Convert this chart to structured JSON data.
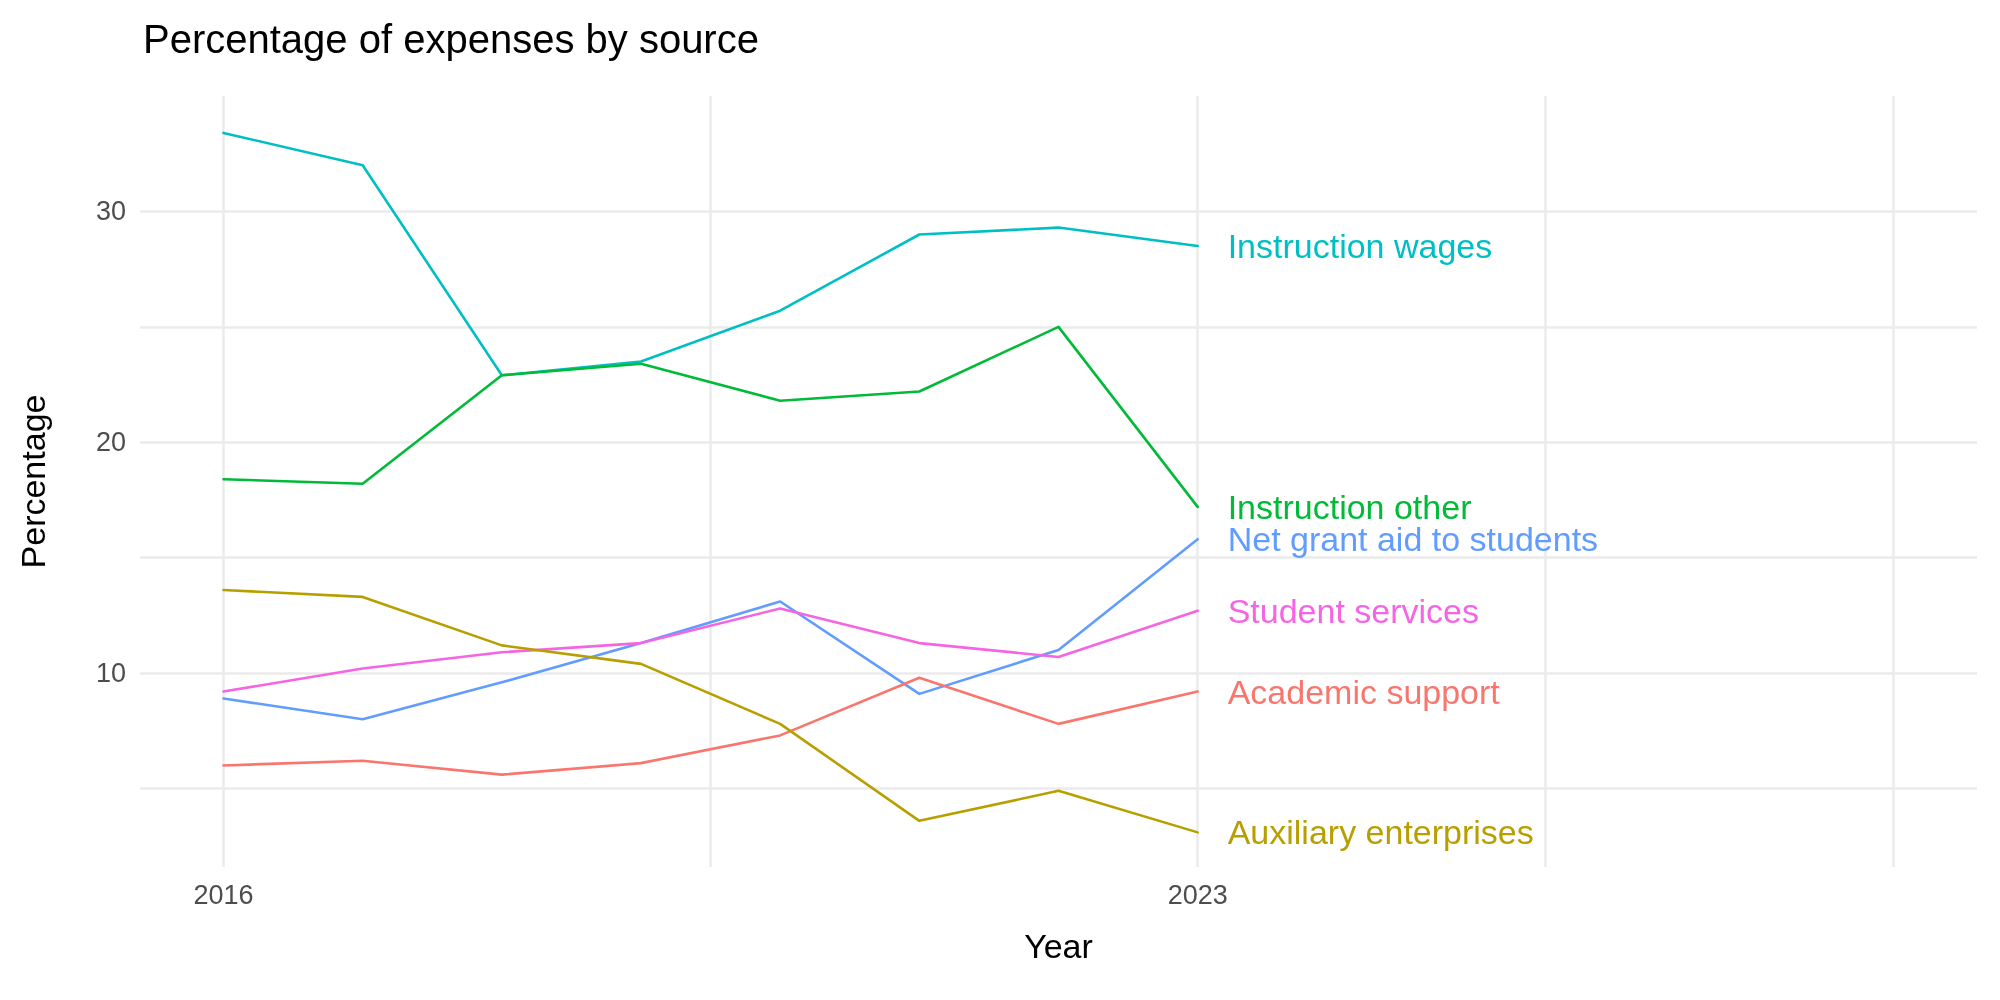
{
  "chart_data": {
    "type": "line",
    "title": "Percentage of expenses by source",
    "xlabel": "Year",
    "ylabel": "Percentage",
    "x": [
      2016,
      2017,
      2018,
      2019,
      2020,
      2021,
      2022,
      2023
    ],
    "series": [
      {
        "name": "Instruction wages",
        "color": "#00bfc4",
        "values": [
          33.4,
          32.0,
          22.9,
          23.5,
          25.7,
          29.0,
          29.3,
          28.5
        ]
      },
      {
        "name": "Instruction other",
        "color": "#00ba38",
        "values": [
          18.4,
          18.2,
          22.9,
          23.4,
          21.8,
          22.2,
          25.0,
          17.2
        ]
      },
      {
        "name": "Net grant aid to students",
        "color": "#619cff",
        "values": [
          8.9,
          8.0,
          9.6,
          11.3,
          13.1,
          9.1,
          11.0,
          15.8
        ]
      },
      {
        "name": "Student services",
        "color": "#f564e3",
        "values": [
          9.2,
          10.2,
          10.9,
          11.3,
          12.8,
          11.3,
          10.7,
          12.7
        ]
      },
      {
        "name": "Academic support",
        "color": "#f8766d",
        "values": [
          6.0,
          6.2,
          5.6,
          6.1,
          7.3,
          9.8,
          7.8,
          9.2
        ]
      },
      {
        "name": "Auxiliary enterprises",
        "color": "#b79f00",
        "values": [
          13.6,
          13.3,
          11.2,
          10.4,
          7.8,
          3.6,
          4.9,
          3.1
        ]
      }
    ],
    "xlim": [
      2015.4,
      2028.6
    ],
    "xticks": [
      2016,
      {
        "value": 2019.5,
        "label": null
      },
      2023,
      {
        "value": 2025.5,
        "label": null
      },
      {
        "value": 2028,
        "label": null
      }
    ],
    "ylim": [
      1.6,
      35
    ],
    "yticks": [
      {
        "value": 5,
        "label": null
      },
      10,
      {
        "value": 15,
        "label": null
      },
      20,
      {
        "value": 25,
        "label": null
      },
      30
    ],
    "grid": true,
    "legend": false,
    "marker": "none",
    "line_style": "solid"
  }
}
